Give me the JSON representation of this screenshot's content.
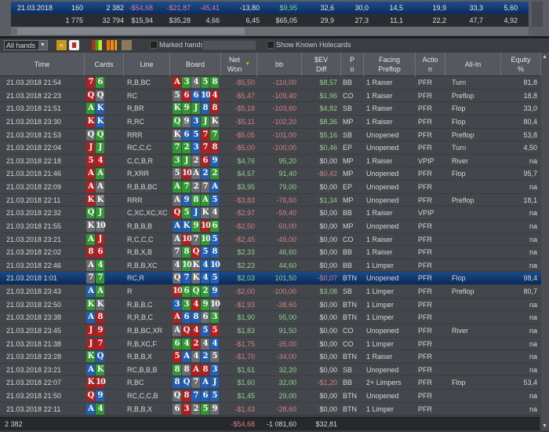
{
  "summary": {
    "rows": [
      {
        "date": "21.03.2018",
        "values": [
          "160",
          "2 382",
          "-$54,68",
          "-$21,87",
          "-45,41",
          "-13,80",
          "$9,95",
          "32,6",
          "30,0",
          "14,5",
          "19,9",
          "33,3",
          "5,60"
        ]
      },
      {
        "date": "",
        "values": [
          "1 775",
          "32 794",
          "$15,94",
          "$35,28",
          "4,66",
          "6,45",
          "$65,05",
          "29,9",
          "27,3",
          "11,1",
          "22,2",
          "47,7",
          "4,92"
        ]
      }
    ]
  },
  "toolbar": {
    "filter_value": "All hands",
    "marked_hands_label": "Marked hands",
    "marked_hands_value": "",
    "show_known_label": "Show Known Holecards",
    "icons": [
      "rewind-icon",
      "card-icon",
      "grid-icon",
      "bar-chart-icon",
      "trophy-icon"
    ]
  },
  "columns": [
    "Time",
    "Cards",
    "Line",
    "Board",
    "Net\nWon",
    "bb",
    "$EV\nDiff",
    "P\no",
    "Facing\nPreflop",
    "Actio\nn",
    "All-In",
    "Equity\n%"
  ],
  "colors": {
    "h": "#b51c1c",
    "c": "#2f9a2f",
    "d": "#1f5fb8",
    "s": "#6a6d70"
  },
  "hands": [
    {
      "time": "21.03.2018 21:54",
      "cards": [
        "7h",
        "6c"
      ],
      "line": "R,B,BC",
      "board": [
        "Ah",
        "3c",
        "4s",
        "5c",
        "8c"
      ],
      "net": "-$5,50",
      "bb": "-110,00",
      "ev": "$8,57",
      "pos": "BB",
      "facing": "1 Raiser",
      "action": "PFR",
      "allin": "Turn",
      "equity": "81,8"
    },
    {
      "time": "21.03.2018 22:23",
      "cards": [
        "Qh",
        "Qs"
      ],
      "line": "RC",
      "board": [
        "5s",
        "6h",
        "6d",
        "10d",
        "4h"
      ],
      "net": "-$5,47",
      "bb": "-109,40",
      "ev": "$1,96",
      "pos": "CO",
      "facing": "1 Raiser",
      "action": "PFR",
      "allin": "Preflop",
      "equity": "18,8"
    },
    {
      "time": "21.03.2018 21:51",
      "cards": [
        "Ac",
        "Kd"
      ],
      "line": "R,BR",
      "board": [
        "Kc",
        "9c",
        "Jc",
        "8d",
        "8h"
      ],
      "net": "-$5,18",
      "bb": "-103,60",
      "ev": "$4,82",
      "pos": "SB",
      "facing": "1 Raiser",
      "action": "PFR",
      "allin": "Flop",
      "equity": "33,0"
    },
    {
      "time": "21.03.2018 23:30",
      "cards": [
        "Kh",
        "Kd"
      ],
      "line": "R,RC",
      "board": [
        "Qc",
        "9s",
        "3d",
        "Jc",
        "Ks"
      ],
      "net": "-$5,11",
      "bb": "-102,20",
      "ev": "$8,36",
      "pos": "MP",
      "facing": "1 Raiser",
      "action": "PFR",
      "allin": "Flop",
      "equity": "80,4"
    },
    {
      "time": "21.03.2018 21:53",
      "cards": [
        "Qs",
        "Qc"
      ],
      "line": "RRR",
      "board": [
        "Ks",
        "6d",
        "5d",
        "7h",
        "7c"
      ],
      "net": "-$5,05",
      "bb": "-101,00",
      "ev": "$5,16",
      "pos": "SB",
      "facing": "Unopened",
      "action": "PFR",
      "allin": "Preflop",
      "equity": "53,8"
    },
    {
      "time": "21.03.2018 22:04",
      "cards": [
        "Jh",
        "Jc"
      ],
      "line": "RC,C,C",
      "board": [
        "7c",
        "2c",
        "3d",
        "7h",
        "8h"
      ],
      "net": "-$5,00",
      "bb": "-100,00",
      "ev": "$0,46",
      "pos": "EP",
      "facing": "Unopened",
      "action": "PFR",
      "allin": "Turn",
      "equity": "4,50"
    },
    {
      "time": "21.03.2018 22:18",
      "cards": [
        "5h",
        "4h"
      ],
      "line": "C,C,B,R",
      "board": [
        "3c",
        "Jc",
        "2s",
        "6h",
        "9d"
      ],
      "net": "$4,76",
      "bb": "95,20",
      "ev": "$0,00",
      "pos": "MP",
      "facing": "1 Raiser",
      "action": "VPIP",
      "allin": "River",
      "equity": "na"
    },
    {
      "time": "21.03.2018 21:46",
      "cards": [
        "Ah",
        "Ac"
      ],
      "line": "R,XRR",
      "board": [
        "5s",
        "10h",
        "As",
        "2d",
        "2c"
      ],
      "net": "$4,57",
      "bb": "91,40",
      "ev": "-$0,42",
      "pos": "MP",
      "facing": "Unopened",
      "action": "PFR",
      "allin": "Flop",
      "equity": "95,7"
    },
    {
      "time": "21.03.2018 22:09",
      "cards": [
        "Ah",
        "As"
      ],
      "line": "R,B,B,BC",
      "board": [
        "Ac",
        "7c",
        "2s",
        "7s",
        "Ad"
      ],
      "net": "$3,95",
      "bb": "79,00",
      "ev": "$0,00",
      "pos": "EP",
      "facing": "Unopened",
      "action": "PFR",
      "allin": "",
      "equity": "na"
    },
    {
      "time": "21.03.2018 22:11",
      "cards": [
        "Kh",
        "Ks"
      ],
      "line": "RRR",
      "board": [
        "As",
        "9d",
        "8c",
        "Ac",
        "5d"
      ],
      "net": "-$3,83",
      "bb": "-76,60",
      "ev": "$1,34",
      "pos": "MP",
      "facing": "Unopened",
      "action": "PFR",
      "allin": "Preflop",
      "equity": "18,1"
    },
    {
      "time": "21.03.2018 22:32",
      "cards": [
        "Qc",
        "Jc"
      ],
      "line": "C,XC,XC,XC",
      "board": [
        "Qh",
        "5c",
        "Jd",
        "Ks",
        "4s"
      ],
      "net": "-$2,97",
      "bb": "-59,40",
      "ev": "$0,00",
      "pos": "BB",
      "facing": "1 Raiser",
      "action": "VPIP",
      "allin": "",
      "equity": "na"
    },
    {
      "time": "21.03.2018 21:55",
      "cards": [
        "Ks",
        "10s"
      ],
      "line": "R,B,B,B",
      "board": [
        "Ad",
        "Kd",
        "9c",
        "10h",
        "6c"
      ],
      "net": "-$2,50",
      "bb": "-50,00",
      "ev": "$0,00",
      "pos": "MP",
      "facing": "Unopened",
      "action": "PFR",
      "allin": "",
      "equity": "na"
    },
    {
      "time": "21.03.2018 23:21",
      "cards": [
        "Ac",
        "Jh"
      ],
      "line": "R,C,C,C",
      "board": [
        "As",
        "10h",
        "7s",
        "10c",
        "5d"
      ],
      "net": "-$2,45",
      "bb": "-49,00",
      "ev": "$0,00",
      "pos": "CO",
      "facing": "1 Raiser",
      "action": "PFR",
      "allin": "",
      "equity": "na"
    },
    {
      "time": "21.03.2018 22:02",
      "cards": [
        "8h",
        "6h"
      ],
      "line": "R,B,X,B",
      "board": [
        "7s",
        "8c",
        "Qh",
        "5d",
        "8d"
      ],
      "net": "$2,33",
      "bb": "46,60",
      "ev": "$0,00",
      "pos": "BB",
      "facing": "1 Raiser",
      "action": "PFR",
      "allin": "",
      "equity": "na"
    },
    {
      "time": "21.03.2018 22:46",
      "cards": [
        "As",
        "4c"
      ],
      "line": "R,B,B,XC",
      "board": [
        "4s",
        "10c",
        "Ks",
        "4d",
        "10d"
      ],
      "net": "$2,23",
      "bb": "44,60",
      "ev": "$0,00",
      "pos": "BB",
      "facing": "1 Limper",
      "action": "PFR",
      "allin": "",
      "equity": "na"
    },
    {
      "time": "21.03.2018 1:01",
      "cards": [
        "7s",
        "7c"
      ],
      "line": "RC,R",
      "board": [
        "Qs",
        "7d",
        "Ks",
        "4d",
        "5d"
      ],
      "net": "$2,03",
      "bb": "101,50",
      "ev": "-$0,07",
      "pos": "BTN",
      "facing": "Unopened",
      "action": "PFR",
      "allin": "Flop",
      "equity": "98,4",
      "selected": true
    },
    {
      "time": "21.03.2018 23:43",
      "cards": [
        "Ad",
        "Ac"
      ],
      "line": "R",
      "board": [
        "10h",
        "6c",
        "Qc",
        "2c",
        "9d"
      ],
      "net": "-$2,00",
      "bb": "-100,00",
      "ev": "$3,08",
      "pos": "SB",
      "facing": "1 Limper",
      "action": "PFR",
      "allin": "Preflop",
      "equity": "80,7"
    },
    {
      "time": "21.03.2018 22:50",
      "cards": [
        "Kc",
        "Ks"
      ],
      "line": "R,B,B,C",
      "board": [
        "3d",
        "3c",
        "4h",
        "9c",
        "10s"
      ],
      "net": "-$1,93",
      "bb": "-38,60",
      "ev": "$0,00",
      "pos": "BTN",
      "facing": "1 Limper",
      "action": "PFR",
      "allin": "",
      "equity": "na"
    },
    {
      "time": "21.03.2018 23:38",
      "cards": [
        "Ad",
        "8h"
      ],
      "line": "R,R,B,C",
      "board": [
        "Ah",
        "6d",
        "8d",
        "6s",
        "3c"
      ],
      "net": "$1,90",
      "bb": "95,00",
      "ev": "$0,00",
      "pos": "BTN",
      "facing": "1 Limper",
      "action": "PFR",
      "allin": "",
      "equity": "na"
    },
    {
      "time": "21.03.2018 23:45",
      "cards": [
        "Jh",
        "9h"
      ],
      "line": "R,B,BC,XR",
      "board": [
        "As",
        "Qh",
        "4h",
        "5d",
        "5h"
      ],
      "net": "$1,83",
      "bb": "91,50",
      "ev": "$0,00",
      "pos": "CO",
      "facing": "Unopened",
      "action": "PFR",
      "allin": "River",
      "equity": "na"
    },
    {
      "time": "21.03.2018 21:38",
      "cards": [
        "Jh",
        "7h"
      ],
      "line": "R,B,XC,F",
      "board": [
        "6c",
        "4c",
        "2h",
        "4s",
        "4d"
      ],
      "net": "-$1,75",
      "bb": "-35,00",
      "ev": "$0,00",
      "pos": "CO",
      "facing": "1 Limper",
      "action": "PFR",
      "allin": "",
      "equity": "na"
    },
    {
      "time": "21.03.2018 23:28",
      "cards": [
        "Kc",
        "Qd"
      ],
      "line": "R,B,B,X",
      "board": [
        "5h",
        "Ad",
        "4s",
        "2d",
        "5s"
      ],
      "net": "-$1,70",
      "bb": "-34,00",
      "ev": "$0,00",
      "pos": "BTN",
      "facing": "1 Raiser",
      "action": "PFR",
      "allin": "",
      "equity": "na"
    },
    {
      "time": "21.03.2018 23:21",
      "cards": [
        "Ad",
        "Kc"
      ],
      "line": "RC,B,B,B",
      "board": [
        "8c",
        "8s",
        "Ah",
        "8h",
        "3d"
      ],
      "net": "$1,61",
      "bb": "32,20",
      "ev": "$0,00",
      "pos": "SB",
      "facing": "Unopened",
      "action": "PFR",
      "allin": "",
      "equity": "na"
    },
    {
      "time": "21.03.2018 22:07",
      "cards": [
        "Kh",
        "10h"
      ],
      "line": "R,BC",
      "board": [
        "8d",
        "Qd",
        "7s",
        "Ad",
        "Jd"
      ],
      "net": "$1,60",
      "bb": "32,00",
      "ev": "-$1,20",
      "pos": "BB",
      "facing": "2+ Limpers",
      "action": "PFR",
      "allin": "Flop",
      "equity": "53,4"
    },
    {
      "time": "21.03.2018 21:50",
      "cards": [
        "Qh",
        "9d"
      ],
      "line": "RC,C,C,B",
      "board": [
        "Qs",
        "8h",
        "7d",
        "6d",
        "5d"
      ],
      "net": "$1,45",
      "bb": "29,00",
      "ev": "$0,00",
      "pos": "BTN",
      "facing": "Unopened",
      "action": "PFR",
      "allin": "",
      "equity": "na"
    },
    {
      "time": "21.03.2018 22:11",
      "cards": [
        "Ad",
        "4c"
      ],
      "line": "R,B,B,X",
      "board": [
        "6s",
        "3h",
        "2s",
        "5c",
        "9s"
      ],
      "net": "-$1,43",
      "bb": "-28,60",
      "ev": "$0,00",
      "pos": "BTN",
      "facing": "1 Limper",
      "action": "PFR",
      "allin": "",
      "equity": "na"
    }
  ],
  "footer": {
    "count": "2 382",
    "net": "-$54,68",
    "bb": "-1 081,60",
    "ev": "$32,81"
  }
}
